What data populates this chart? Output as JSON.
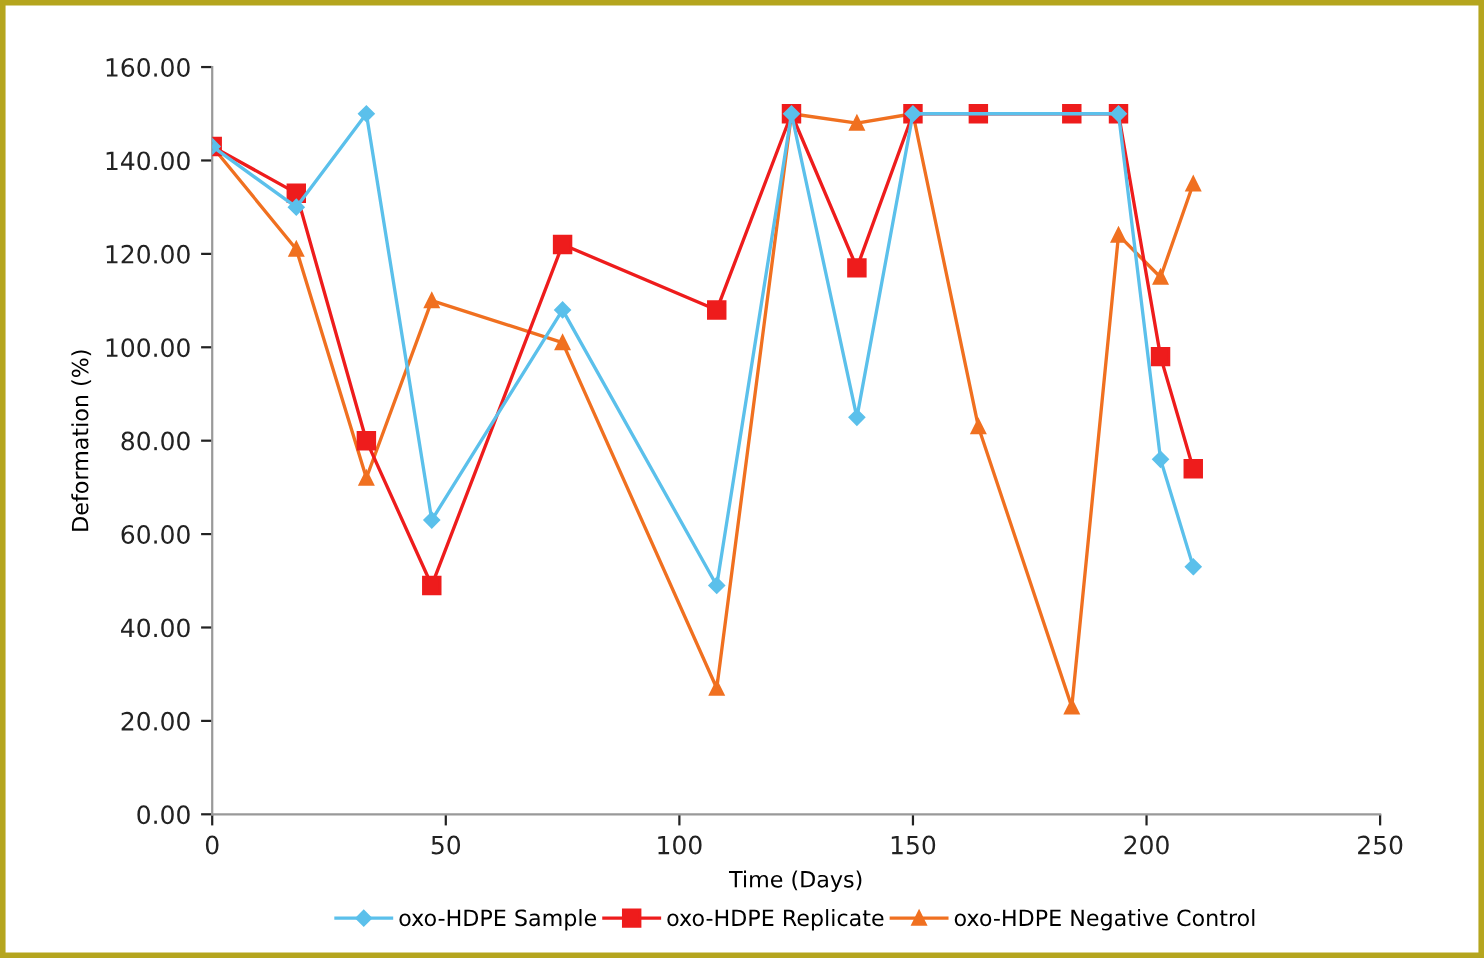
{
  "chart_data": {
    "type": "line",
    "xlabel": "Time (Days)",
    "ylabel": "Deformation (%)",
    "xlim": [
      0,
      250
    ],
    "xticks": [
      0,
      50,
      100,
      150,
      200,
      250
    ],
    "ylim": [
      0,
      160
    ],
    "yticks": [
      {
        "value": 0,
        "label": "0.00"
      },
      {
        "value": 20,
        "label": "20.00"
      },
      {
        "value": 40,
        "label": "40.00"
      },
      {
        "value": 60,
        "label": "60.00"
      },
      {
        "value": 80,
        "label": "80.00"
      },
      {
        "value": 100,
        "label": "100.00"
      },
      {
        "value": 120,
        "label": "120.00"
      },
      {
        "value": 140,
        "label": "140.00"
      },
      {
        "value": 160,
        "label": "160.00"
      }
    ],
    "grid": false,
    "legend": "bottom",
    "series": [
      {
        "name": "oxo-HDPE Sample",
        "color": "#5bc0eb",
        "marker": "diamond",
        "x": [
          0,
          18,
          33,
          47,
          75,
          108,
          124,
          138,
          150,
          194,
          203,
          210
        ],
        "values": [
          143,
          130,
          150,
          63,
          108,
          49,
          150,
          85,
          150,
          150,
          76,
          53
        ]
      },
      {
        "name": "oxo-HDPE Replicate",
        "color": "#ee1c1c",
        "marker": "square",
        "x": [
          0,
          18,
          33,
          47,
          75,
          108,
          124,
          138,
          150,
          164,
          184,
          194,
          203,
          210
        ],
        "values": [
          143,
          133,
          80,
          49,
          122,
          108,
          150,
          117,
          150,
          150,
          150,
          150,
          98,
          74
        ]
      },
      {
        "name": "oxo-HDPE Negative Control",
        "color": "#f07020",
        "marker": "triangle",
        "x": [
          0,
          18,
          33,
          47,
          75,
          108,
          124,
          138,
          150,
          164,
          184,
          194,
          203,
          210
        ],
        "values": [
          143,
          121,
          72,
          110,
          101,
          27,
          150,
          148,
          150,
          83,
          23,
          124,
          115,
          135
        ]
      }
    ]
  }
}
